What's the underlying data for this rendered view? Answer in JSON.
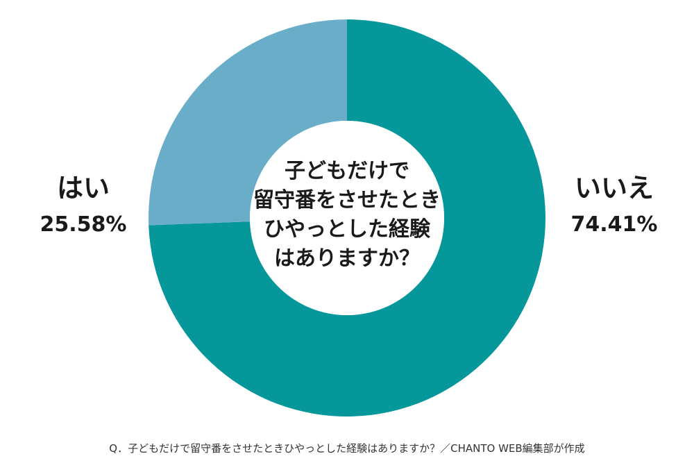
{
  "chart_data": {
    "type": "pie",
    "variant": "donut",
    "center_title_lines": [
      "子どもだけで",
      "留守番をさせたとき",
      "ひやっとした経験",
      "はありますか？"
    ],
    "slices": [
      {
        "label": "いいえ",
        "value": 74.41,
        "value_text": "74.41%",
        "color": "#06979b"
      },
      {
        "label": "はい",
        "value": 25.58,
        "value_text": "25.58%",
        "color": "#6aadc9"
      }
    ],
    "start_angle_deg": 0,
    "direction": "clockwise",
    "legend": "none"
  },
  "footnote": "Q．子どもだけで留守番をさせたときひやっとした経験はありますか？／CHANTO WEB編集部が作成"
}
